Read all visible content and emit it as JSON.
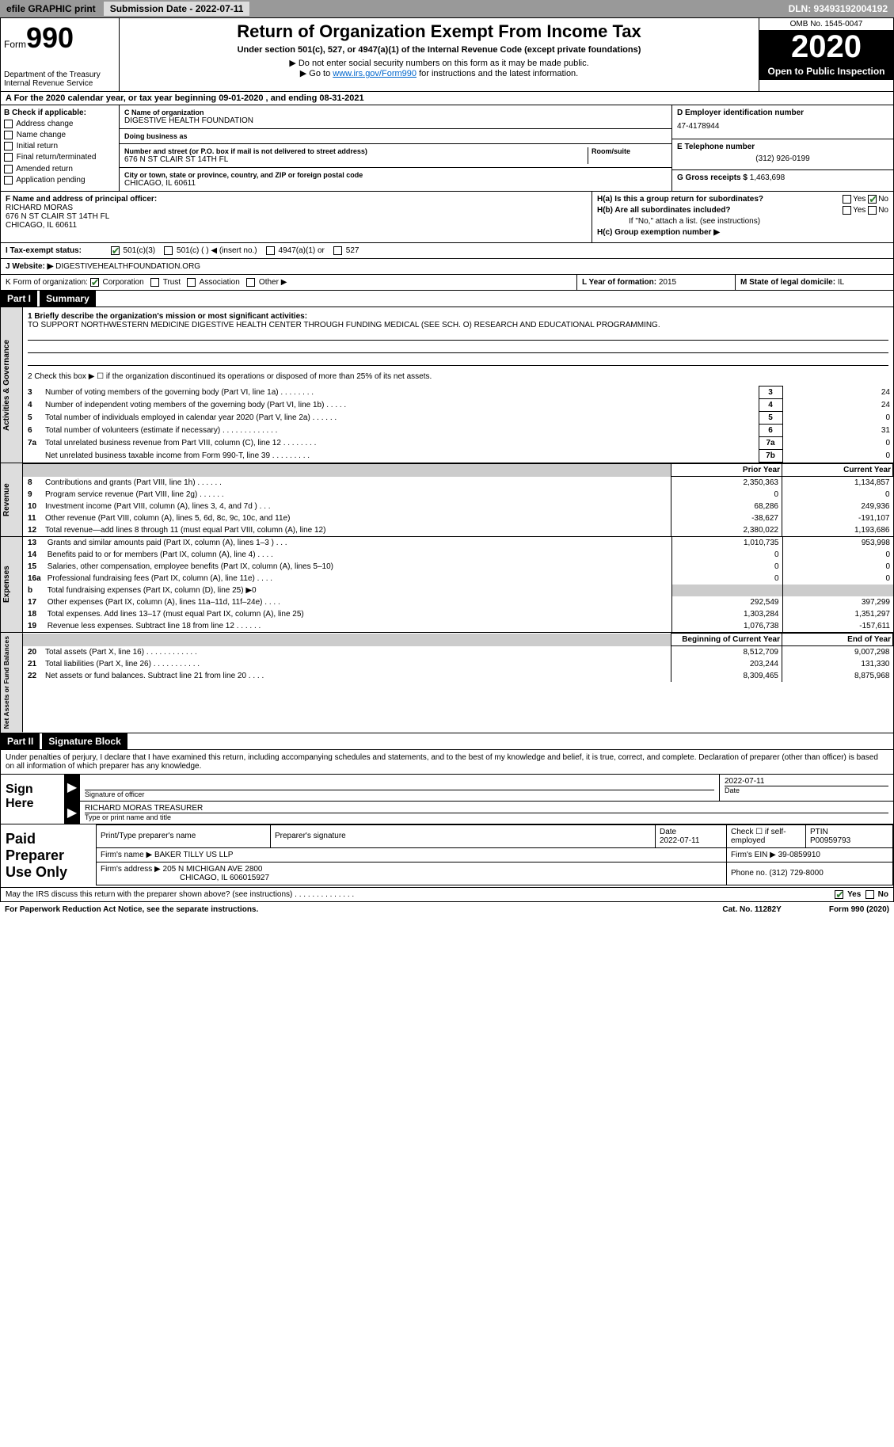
{
  "topbar": {
    "efile": "efile GRAPHIC print",
    "submission": "Submission Date - 2022-07-11",
    "dln": "DLN: 93493192004192"
  },
  "header": {
    "form_small": "Form",
    "form_big": "990",
    "dept": "Department of the Treasury\nInternal Revenue Service",
    "title": "Return of Organization Exempt From Income Tax",
    "subtitle": "Under section 501(c), 527, or 4947(a)(1) of the Internal Revenue Code (except private foundations)",
    "instr1": "▶ Do not enter social security numbers on this form as it may be made public.",
    "instr2_pre": "▶ Go to ",
    "instr2_link": "www.irs.gov/Form990",
    "instr2_post": " for instructions and the latest information.",
    "omb": "OMB No. 1545-0047",
    "year": "2020",
    "inspect": "Open to Public Inspection"
  },
  "period": "A For the 2020 calendar year, or tax year beginning 09-01-2020     , and ending 08-31-2021",
  "boxB": {
    "label": "B Check if applicable:",
    "items": [
      "Address change",
      "Name change",
      "Initial return",
      "Final return/terminated",
      "Amended return",
      "Application pending"
    ]
  },
  "boxC": {
    "name_lbl": "C Name of organization",
    "name_val": "DIGESTIVE HEALTH FOUNDATION",
    "dba_lbl": "Doing business as",
    "dba_val": "",
    "addr_lbl": "Number and street (or P.O. box if mail is not delivered to street address)",
    "room_lbl": "Room/suite",
    "addr_val": "676 N ST CLAIR ST 14TH FL",
    "city_lbl": "City or town, state or province, country, and ZIP or foreign postal code",
    "city_val": "CHICAGO, IL  60611"
  },
  "boxD": {
    "ein_lbl": "D Employer identification number",
    "ein_val": "47-4178944",
    "phone_lbl": "E Telephone number",
    "phone_val": "(312) 926-0199",
    "receipts_lbl": "G Gross receipts $",
    "receipts_val": "1,463,698"
  },
  "boxF": {
    "lbl": "F  Name and address of principal officer:",
    "name": "RICHARD MORAS",
    "addr1": "676 N ST CLAIR ST 14TH FL",
    "addr2": "CHICAGO, IL  60611"
  },
  "boxH": {
    "ha_lbl": "H(a)  Is this a group return for subordinates?",
    "ha_yes": "Yes",
    "ha_no": "No",
    "hb_lbl": "H(b)  Are all subordinates included?",
    "hb_yes": "Yes",
    "hb_no": "No",
    "hb_note": "If \"No,\" attach a list. (see instructions)",
    "hc_lbl": "H(c)  Group exemption number ▶"
  },
  "boxI": {
    "lbl": "I    Tax-exempt status:",
    "opts": [
      "501(c)(3)",
      "501(c) (   ) ◀ (insert no.)",
      "4947(a)(1) or",
      "527"
    ]
  },
  "boxJ": {
    "lbl": "J   Website: ▶",
    "val": "DIGESTIVEHEALTHFOUNDATION.ORG"
  },
  "boxK": {
    "lbl": "K Form of organization:",
    "opts": [
      "Corporation",
      "Trust",
      "Association",
      "Other ▶"
    ],
    "yof_lbl": "L Year of formation:",
    "yof_val": "2015",
    "state_lbl": "M State of legal domicile:",
    "state_val": "IL"
  },
  "part1": {
    "num": "Part I",
    "title": "Summary",
    "mission_lbl": "1  Briefly describe the organization's mission or most significant activities:",
    "mission_val": "TO SUPPORT NORTHWESTERN MEDICINE DIGESTIVE HEALTH CENTER THROUGH FUNDING MEDICAL (SEE SCH. O) RESEARCH AND EDUCATIONAL PROGRAMMING.",
    "line2": "2   Check this box ▶ ☐  if the organization discontinued its operations or disposed of more than 25% of its net assets.",
    "gov_rows": [
      {
        "num": "3",
        "desc": "Number of voting members of the governing body (Part VI, line 1a)   .    .    .    .    .    .    .    .",
        "box": "3",
        "val": "24"
      },
      {
        "num": "4",
        "desc": "Number of independent voting members of the governing body (Part VI, line 1b)   .    .    .    .    .",
        "box": "4",
        "val": "24"
      },
      {
        "num": "5",
        "desc": "Total number of individuals employed in calendar year 2020 (Part V, line 2a)   .    .    .    .    .    .",
        "box": "5",
        "val": "0"
      },
      {
        "num": "6",
        "desc": "Total number of volunteers (estimate if necessary)   .    .    .    .    .    .    .    .    .    .    .    .    .",
        "box": "6",
        "val": "31"
      },
      {
        "num": "7a",
        "desc": "Total unrelated business revenue from Part VIII, column (C), line 12   .    .    .    .    .    .    .    .",
        "box": "7a",
        "val": "0"
      },
      {
        "num": "",
        "desc": "Net unrelated business taxable income from Form 990-T, line 39   .    .    .    .    .    .    .    .    .",
        "box": "7b",
        "val": "0"
      }
    ],
    "headers": {
      "prior": "Prior Year",
      "current": "Current Year"
    },
    "revenue_rows": [
      {
        "num": "8",
        "desc": "Contributions and grants (Part VIII, line 1h)   .    .    .    .    .    .",
        "prior": "2,350,363",
        "curr": "1,134,857"
      },
      {
        "num": "9",
        "desc": "Program service revenue (Part VIII, line 2g)   .    .    .    .    .    .",
        "prior": "0",
        "curr": "0"
      },
      {
        "num": "10",
        "desc": "Investment income (Part VIII, column (A), lines 3, 4, and 7d )   .    .    .",
        "prior": "68,286",
        "curr": "249,936"
      },
      {
        "num": "11",
        "desc": "Other revenue (Part VIII, column (A), lines 5, 6d, 8c, 9c, 10c, and 11e)",
        "prior": "-38,627",
        "curr": "-191,107"
      },
      {
        "num": "12",
        "desc": "Total revenue—add lines 8 through 11 (must equal Part VIII, column (A), line 12)",
        "prior": "2,380,022",
        "curr": "1,193,686"
      }
    ],
    "expense_rows": [
      {
        "num": "13",
        "desc": "Grants and similar amounts paid (Part IX, column (A), lines 1–3 )   .    .    .",
        "prior": "1,010,735",
        "curr": "953,998"
      },
      {
        "num": "14",
        "desc": "Benefits paid to or for members (Part IX, column (A), line 4)   .    .    .    .",
        "prior": "0",
        "curr": "0"
      },
      {
        "num": "15",
        "desc": "Salaries, other compensation, employee benefits (Part IX, column (A), lines 5–10)",
        "prior": "0",
        "curr": "0"
      },
      {
        "num": "16a",
        "desc": "Professional fundraising fees (Part IX, column (A), line 11e)   .    .    .    .",
        "prior": "0",
        "curr": "0"
      },
      {
        "num": "b",
        "desc": "Total fundraising expenses (Part IX, column (D), line 25) ▶0",
        "prior": "__shade__",
        "curr": "__shade__"
      },
      {
        "num": "17",
        "desc": "Other expenses (Part IX, column (A), lines 11a–11d, 11f–24e)   .    .    .    .",
        "prior": "292,549",
        "curr": "397,299"
      },
      {
        "num": "18",
        "desc": "Total expenses. Add lines 13–17 (must equal Part IX, column (A), line 25)",
        "prior": "1,303,284",
        "curr": "1,351,297"
      },
      {
        "num": "19",
        "desc": "Revenue less expenses. Subtract line 18 from line 12   .    .    .    .    .    .",
        "prior": "1,076,738",
        "curr": "-157,611"
      }
    ],
    "net_headers": {
      "begin": "Beginning of Current Year",
      "end": "End of Year"
    },
    "net_rows": [
      {
        "num": "20",
        "desc": "Total assets (Part X, line 16)   .    .    .    .    .    .    .    .    .    .    .    .",
        "prior": "8,512,709",
        "curr": "9,007,298"
      },
      {
        "num": "21",
        "desc": "Total liabilities (Part X, line 26)   .    .    .    .    .    .    .    .    .    .    .",
        "prior": "203,244",
        "curr": "131,330"
      },
      {
        "num": "22",
        "desc": "Net assets or fund balances. Subtract line 21 from line 20   .    .    .    .",
        "prior": "8,309,465",
        "curr": "8,875,968"
      }
    ]
  },
  "part2": {
    "num": "Part II",
    "title": "Signature Block",
    "declaration": "Under penalties of perjury, I declare that I have examined this return, including accompanying schedules and statements, and to the best of my knowledge and belief, it is true, correct, and complete. Declaration of preparer (other than officer) is based on all information of which preparer has any knowledge."
  },
  "sign": {
    "label": "Sign Here",
    "sig_lbl": "Signature of officer",
    "date_lbl": "Date",
    "date_val": "2022-07-11",
    "name_val": "RICHARD MORAS  TREASURER",
    "name_lbl": "Type or print name and title"
  },
  "preparer": {
    "label": "Paid Preparer Use Only",
    "h_name": "Print/Type preparer's name",
    "h_sig": "Preparer's signature",
    "h_date": "Date",
    "h_check": "Check ☐ if self-employed",
    "h_ptin": "PTIN",
    "date_val": "2022-07-11",
    "ptin_val": "P00959793",
    "firm_name_lbl": "Firm's name    ▶",
    "firm_name_val": "BAKER TILLY US LLP",
    "firm_ein_lbl": "Firm's EIN ▶",
    "firm_ein_val": "39-0859910",
    "firm_addr_lbl": "Firm's address ▶",
    "firm_addr_val": "205 N MICHIGAN AVE 2800",
    "firm_addr_val2": "CHICAGO, IL  606015927",
    "firm_phone_lbl": "Phone no.",
    "firm_phone_val": "(312) 729-8000"
  },
  "footer": {
    "discuss": "May the IRS discuss this return with the preparer shown above? (see instructions)   .    .    .    .    .    .    .    .    .    .    .    .    .    .",
    "yes": "Yes",
    "no": "No",
    "pra": "For Paperwork Reduction Act Notice, see the separate instructions.",
    "cat": "Cat. No. 11282Y",
    "form": "Form 990 (2020)"
  },
  "side_labels": {
    "gov": "Activities & Governance",
    "rev": "Revenue",
    "exp": "Expenses",
    "net": "Net Assets or Fund Balances"
  }
}
